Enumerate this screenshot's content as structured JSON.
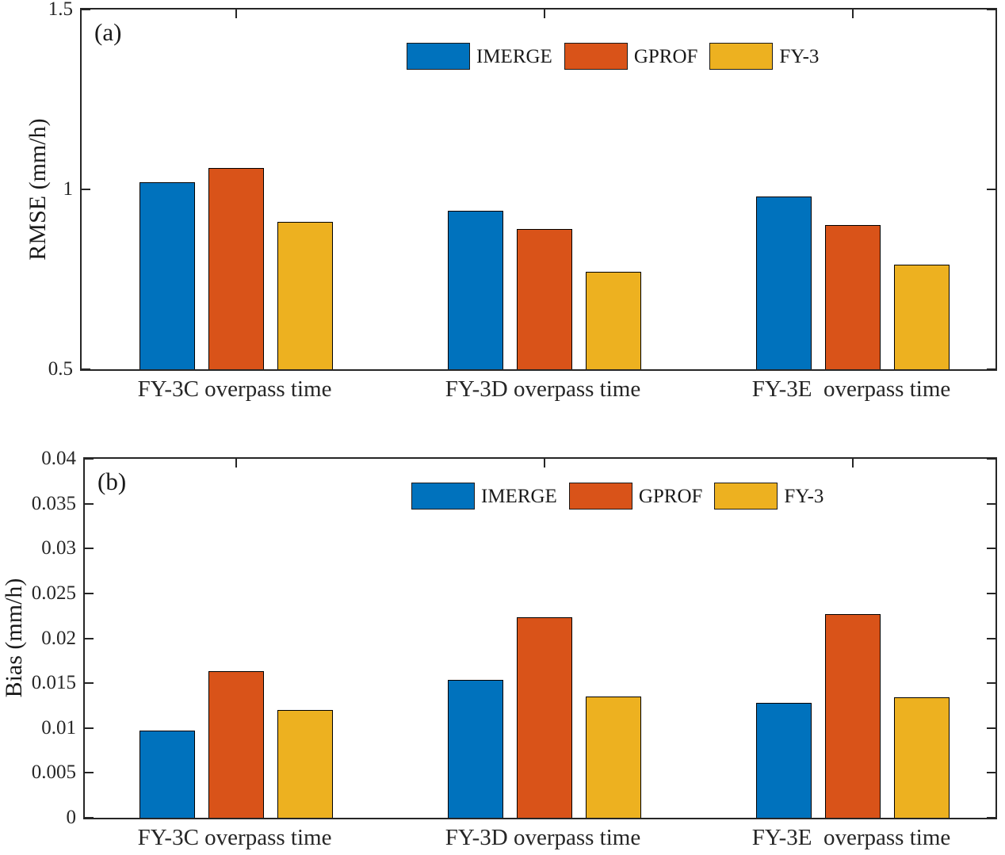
{
  "figure": {
    "background": "#ffffff",
    "axis_color": "#262626",
    "text_color": "#1a1a1a"
  },
  "chart_data": [
    {
      "type": "bar",
      "panel_label": "(a)",
      "ylabel": "RMSE (mm/h)",
      "ylim": [
        0.5,
        1.5
      ],
      "grid": false,
      "legend_position": "top-center-inside",
      "yticks": [
        {
          "value": 0.5,
          "label": "0.5"
        },
        {
          "value": 1.0,
          "label": "1"
        },
        {
          "value": 1.5,
          "label": "1.5"
        }
      ],
      "categories": [
        "FY-3C overpass time",
        "FY-3D overpass time",
        "FY-3E  overpass time"
      ],
      "series": [
        {
          "name": "IMERGE",
          "color": "#0072BD",
          "values": [
            1.02,
            0.94,
            0.98
          ]
        },
        {
          "name": "GPROF",
          "color": "#D95319",
          "values": [
            1.06,
            0.89,
            0.9
          ]
        },
        {
          "name": "FY-3",
          "color": "#EDB120",
          "values": [
            0.91,
            0.77,
            0.79
          ]
        }
      ]
    },
    {
      "type": "bar",
      "panel_label": "(b)",
      "ylabel": "Bias (mm/h)",
      "ylim": [
        0,
        0.04
      ],
      "grid": false,
      "legend_position": "top-center-inside",
      "yticks": [
        {
          "value": 0,
          "label": "0"
        },
        {
          "value": 0.005,
          "label": "0.005"
        },
        {
          "value": 0.01,
          "label": "0.01"
        },
        {
          "value": 0.015,
          "label": "0.015"
        },
        {
          "value": 0.02,
          "label": "0.02"
        },
        {
          "value": 0.025,
          "label": "0.025"
        },
        {
          "value": 0.03,
          "label": "0.03"
        },
        {
          "value": 0.035,
          "label": "0.035"
        },
        {
          "value": 0.04,
          "label": "0.04"
        }
      ],
      "categories": [
        "FY-3C overpass time",
        "FY-3D overpass time",
        "FY-3E  overpass time"
      ],
      "series": [
        {
          "name": "IMERGE",
          "color": "#0072BD",
          "values": [
            0.0097,
            0.0154,
            0.0128
          ]
        },
        {
          "name": "GPROF",
          "color": "#D95319",
          "values": [
            0.0163,
            0.0223,
            0.0227
          ]
        },
        {
          "name": "FY-3",
          "color": "#EDB120",
          "values": [
            0.012,
            0.0135,
            0.0134
          ]
        }
      ]
    }
  ]
}
